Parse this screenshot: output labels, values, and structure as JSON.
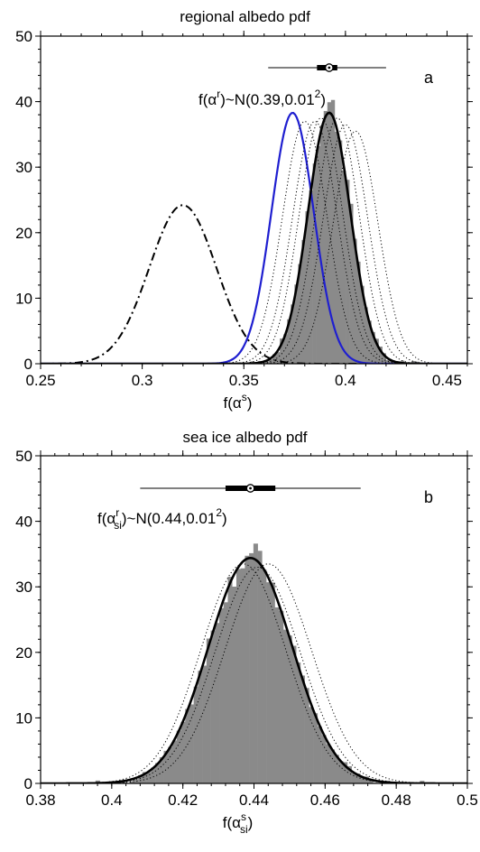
{
  "chart_data": [
    {
      "panel": "a",
      "type": "histogram",
      "title": "regional albedo pdf",
      "xlabel": {
        "base": "f(α",
        "sup": "s",
        "sub": "",
        "close": ")"
      },
      "ylabel": "",
      "xlim": [
        0.25,
        0.46
      ],
      "ylim": [
        0,
        50
      ],
      "xticks": [
        0.25,
        0.3,
        0.35,
        0.4,
        0.45
      ],
      "xtick_labels": [
        "0.25",
        "0.3",
        "0.35",
        "0.4",
        "0.45"
      ],
      "yticks": [
        0,
        10,
        20,
        30,
        40,
        50
      ],
      "ytick_labels": [
        "0",
        "10",
        "20",
        "30",
        "40",
        "50"
      ],
      "panel_label": "a",
      "annotation": {
        "pre": "f(α",
        "sup": "r",
        "sub": "",
        "post": ")~N(0.39,0.01",
        "sup2": "2",
        "end": ")"
      },
      "boxplot": {
        "whisker_low": 0.362,
        "box_low": 0.386,
        "median": 0.392,
        "box_high": 0.396,
        "whisker_high": 0.42
      },
      "histogram": {
        "mean": 0.392,
        "sd": 0.0105,
        "peak": 39.5,
        "bin_width": 0.0018
      },
      "series": [
        {
          "style": "dashdot",
          "color": "#000000",
          "mean": 0.32,
          "sd": 0.0165,
          "peak": 24.2
        },
        {
          "style": "solid",
          "color": "#1f1fd0",
          "mean": 0.374,
          "sd": 0.0104,
          "peak": 38.3
        },
        {
          "style": "solid-thick",
          "color": "#000000",
          "mean": 0.392,
          "sd": 0.0104,
          "peak": 38.3
        },
        {
          "style": "dotted",
          "color": "#000000",
          "mean": 0.38,
          "sd": 0.011,
          "peak": 37.0
        },
        {
          "style": "dotted",
          "color": "#000000",
          "mean": 0.385,
          "sd": 0.011,
          "peak": 37.0
        },
        {
          "style": "dotted",
          "color": "#000000",
          "mean": 0.388,
          "sd": 0.0108,
          "peak": 37.5
        },
        {
          "style": "dotted",
          "color": "#000000",
          "mean": 0.396,
          "sd": 0.0108,
          "peak": 37.5
        },
        {
          "style": "dotted",
          "color": "#000000",
          "mean": 0.4,
          "sd": 0.011,
          "peak": 36.5
        },
        {
          "style": "dotted",
          "color": "#000000",
          "mean": 0.405,
          "sd": 0.011,
          "peak": 35.5
        }
      ]
    },
    {
      "panel": "b",
      "type": "histogram",
      "title": "sea ice albedo pdf",
      "xlabel": {
        "base": "f(α",
        "sup": "s",
        "sub": "si",
        "close": ")"
      },
      "ylabel": "",
      "xlim": [
        0.38,
        0.5
      ],
      "ylim": [
        0,
        50
      ],
      "xticks": [
        0.38,
        0.4,
        0.42,
        0.44,
        0.46,
        0.48,
        0.5
      ],
      "xtick_labels": [
        "0.38",
        "0.4",
        "0.42",
        "0.44",
        "0.46",
        "0.48",
        "0.5"
      ],
      "yticks": [
        0,
        10,
        20,
        30,
        40,
        50
      ],
      "ytick_labels": [
        "0",
        "10",
        "20",
        "30",
        "40",
        "50"
      ],
      "panel_label": "b",
      "annotation": {
        "pre": "f(α",
        "sup": "r",
        "sub": "si",
        "post": ")~N(0.44,0.01",
        "sup2": "2",
        "end": ")"
      },
      "boxplot": {
        "whisker_low": 0.408,
        "box_low": 0.432,
        "median": 0.439,
        "box_high": 0.446,
        "whisker_high": 0.47
      },
      "histogram": {
        "mean": 0.439,
        "sd": 0.0118,
        "peak": 34.5,
        "bin_width": 0.0012
      },
      "series": [
        {
          "style": "solid-thick",
          "color": "#000000",
          "mean": 0.439,
          "sd": 0.0118,
          "peak": 34.4
        },
        {
          "style": "dotted",
          "color": "#000000",
          "mean": 0.437,
          "sd": 0.012,
          "peak": 33.5
        },
        {
          "style": "dotted",
          "color": "#000000",
          "mean": 0.441,
          "sd": 0.012,
          "peak": 33.0
        },
        {
          "style": "dotted",
          "color": "#000000",
          "mean": 0.444,
          "sd": 0.0122,
          "peak": 33.5
        }
      ]
    }
  ]
}
